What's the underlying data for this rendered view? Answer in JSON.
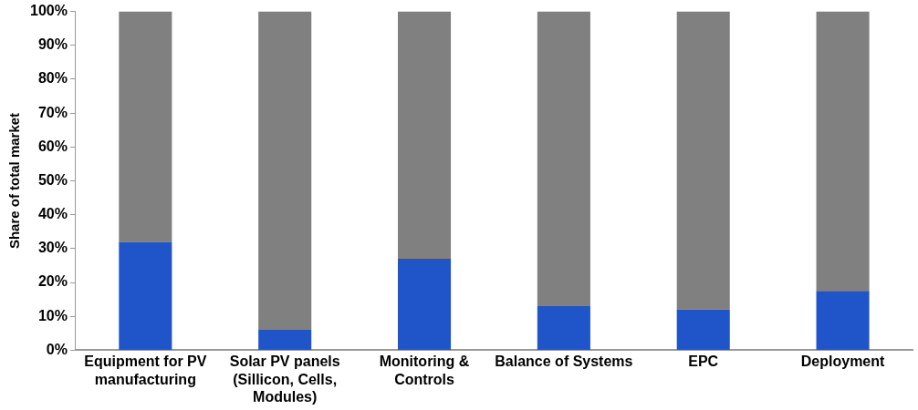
{
  "chart_data": {
    "type": "bar",
    "stacked": true,
    "ylabel": "Share of total market",
    "categories": [
      "Equipment for PV manufacturing",
      "Solar PV panels (Sillicon, Cells, Modules)",
      "Monitoring & Controls",
      "Balance of Systems",
      "EPC",
      "Deployment"
    ],
    "series": [
      {
        "color": "#2055c9",
        "values": [
          32,
          6,
          27,
          13,
          12,
          17.5
        ]
      },
      {
        "color": "#808080",
        "values": [
          68,
          94,
          73,
          87,
          88,
          82.5
        ]
      }
    ],
    "ylim": [
      0,
      100
    ],
    "yticks": [
      {
        "value": 0,
        "label": "0%"
      },
      {
        "value": 10,
        "label": "10%"
      },
      {
        "value": 20,
        "label": "20%"
      },
      {
        "value": 30,
        "label": "30%"
      },
      {
        "value": 40,
        "label": "40%"
      },
      {
        "value": 50,
        "label": "50%"
      },
      {
        "value": 60,
        "label": "60%"
      },
      {
        "value": 70,
        "label": "70%"
      },
      {
        "value": 80,
        "label": "80%"
      },
      {
        "value": 90,
        "label": "90%"
      },
      {
        "value": 100,
        "label": "100%"
      }
    ],
    "grid": false,
    "legend": false
  }
}
